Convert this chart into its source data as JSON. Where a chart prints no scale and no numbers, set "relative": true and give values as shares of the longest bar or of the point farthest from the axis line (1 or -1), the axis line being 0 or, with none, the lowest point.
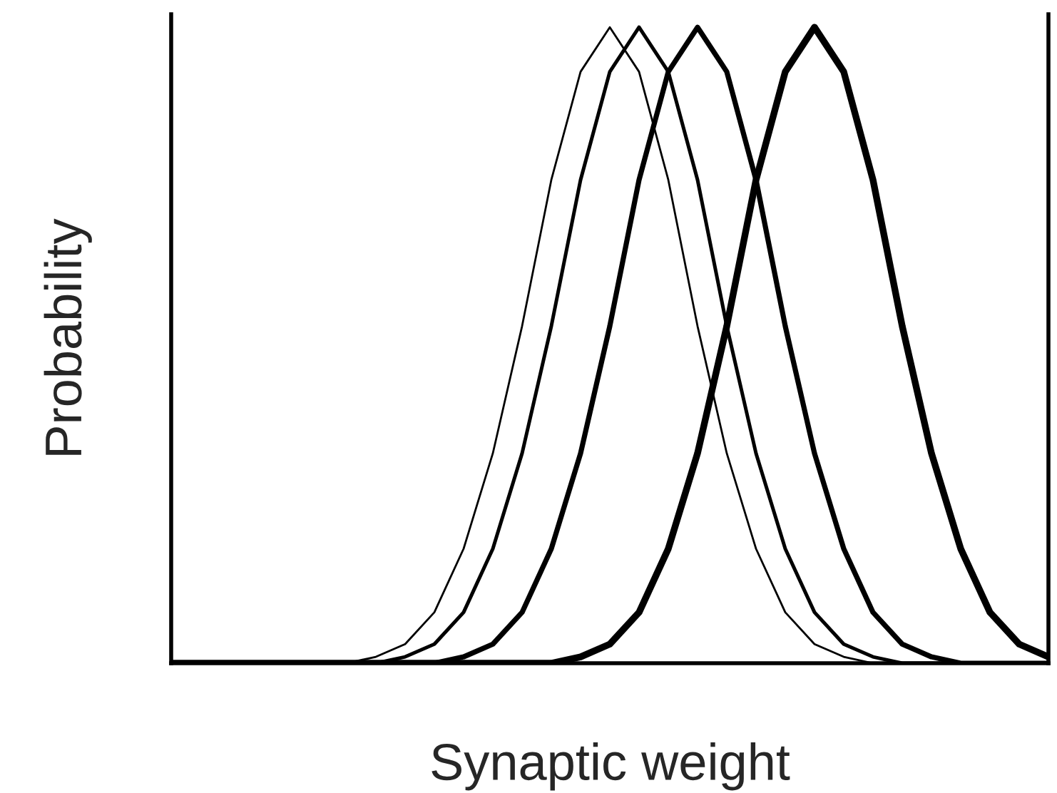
{
  "chart_data": {
    "type": "line",
    "relative": true,
    "xlabel": "Synaptic weight",
    "ylabel": "Probability",
    "tick_labels": false,
    "grid": false,
    "legend": false,
    "marker": "none",
    "line_style": "solid",
    "categories": [
      null,
      null,
      null,
      null,
      null,
      null,
      null,
      null,
      null,
      null,
      null,
      null,
      null,
      null,
      null,
      null,
      null,
      null,
      null,
      null,
      null,
      null,
      null,
      null,
      null,
      null,
      null,
      null,
      null,
      null,
      null
    ],
    "series": [
      {
        "color": "#000000",
        "values": [
          0,
          0,
          0,
          0,
          0,
          0,
          0,
          0.01,
          0.03,
          0.08,
          0.18,
          0.33,
          0.53,
          0.76,
          0.93,
          1,
          0.93,
          0.76,
          0.53,
          0.33,
          0.18,
          0.08,
          0.03,
          0.01,
          0,
          0,
          0,
          0,
          0,
          0,
          0
        ]
      },
      {
        "color": "#000000",
        "values": [
          0,
          0,
          0,
          0,
          0,
          0,
          0,
          0,
          0.01,
          0.03,
          0.08,
          0.18,
          0.33,
          0.53,
          0.76,
          0.93,
          1,
          0.93,
          0.76,
          0.53,
          0.33,
          0.18,
          0.08,
          0.03,
          0.01,
          0,
          0,
          0,
          0,
          0,
          0
        ]
      },
      {
        "color": "#000000",
        "values": [
          0,
          0,
          0,
          0,
          0,
          0,
          0,
          0,
          0,
          0,
          0.01,
          0.03,
          0.08,
          0.18,
          0.33,
          0.53,
          0.76,
          0.93,
          1,
          0.93,
          0.76,
          0.53,
          0.33,
          0.18,
          0.08,
          0.03,
          0.01,
          0,
          0,
          0,
          0
        ]
      },
      {
        "color": "#000000",
        "values": [
          0,
          0,
          0,
          0,
          0,
          0,
          0,
          0,
          0,
          0,
          0,
          0,
          0,
          0,
          0.01,
          0.03,
          0.08,
          0.18,
          0.33,
          0.53,
          0.76,
          0.93,
          1,
          0.93,
          0.76,
          0.53,
          0.33,
          0.18,
          0.08,
          0.03,
          0.01
        ]
      }
    ]
  }
}
